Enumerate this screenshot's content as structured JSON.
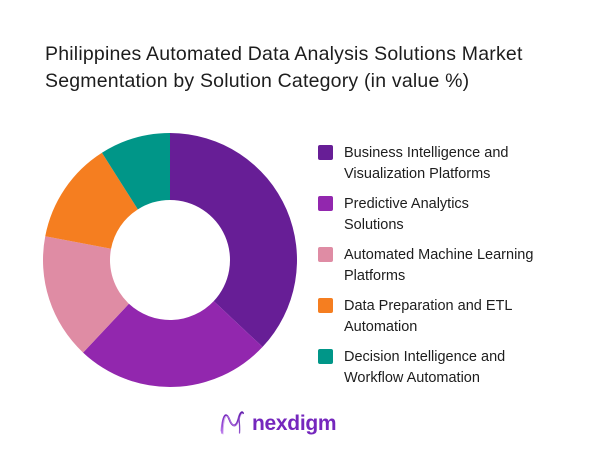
{
  "title": {
    "line1": "Philippines Automated Data Analysis Solutions Market",
    "line2": "Segmentation by Solution Category (in value %)"
  },
  "legend": {
    "items": [
      {
        "label": "Business Intelligence and\nVisualization Platforms",
        "color": "#671E96"
      },
      {
        "label": "Predictive Analytics\nSolutions",
        "color": "#9227AE"
      },
      {
        "label": "Automated Machine Learning\nPlatforms",
        "color": "#DF8CA4"
      },
      {
        "label": "Data Preparation and ETL\nAutomation",
        "color": "#F57E20"
      },
      {
        "label": "Decision Intelligence and\nWorkflow Automation",
        "color": "#009688"
      }
    ]
  },
  "chart_data": {
    "type": "pie",
    "subtype": "donut",
    "title": "Philippines Automated Data Analysis Solutions Market Segmentation by Solution Category (in value %)",
    "categories": [
      "Business Intelligence and Visualization Platforms",
      "Predictive Analytics Solutions",
      "Automated Machine Learning Platforms",
      "Data Preparation and ETL Automation",
      "Decision Intelligence and Workflow Automation"
    ],
    "values": [
      37,
      25,
      16,
      13,
      9
    ],
    "unit": "percent of value",
    "colors": [
      "#671E96",
      "#9227AE",
      "#DF8CA4",
      "#F57E20",
      "#009688"
    ],
    "start_angle_deg": 0,
    "direction": "clockwise",
    "inner_radius_ratio": 0.47,
    "legend_position": "right",
    "data_labels": false
  },
  "logo": {
    "text": "nexdigm",
    "icon": "nexdigm-n-wave-icon",
    "color": "#7527BD"
  },
  "colors": {
    "background": "#FFFFFF",
    "text": "#1D1D1D"
  }
}
